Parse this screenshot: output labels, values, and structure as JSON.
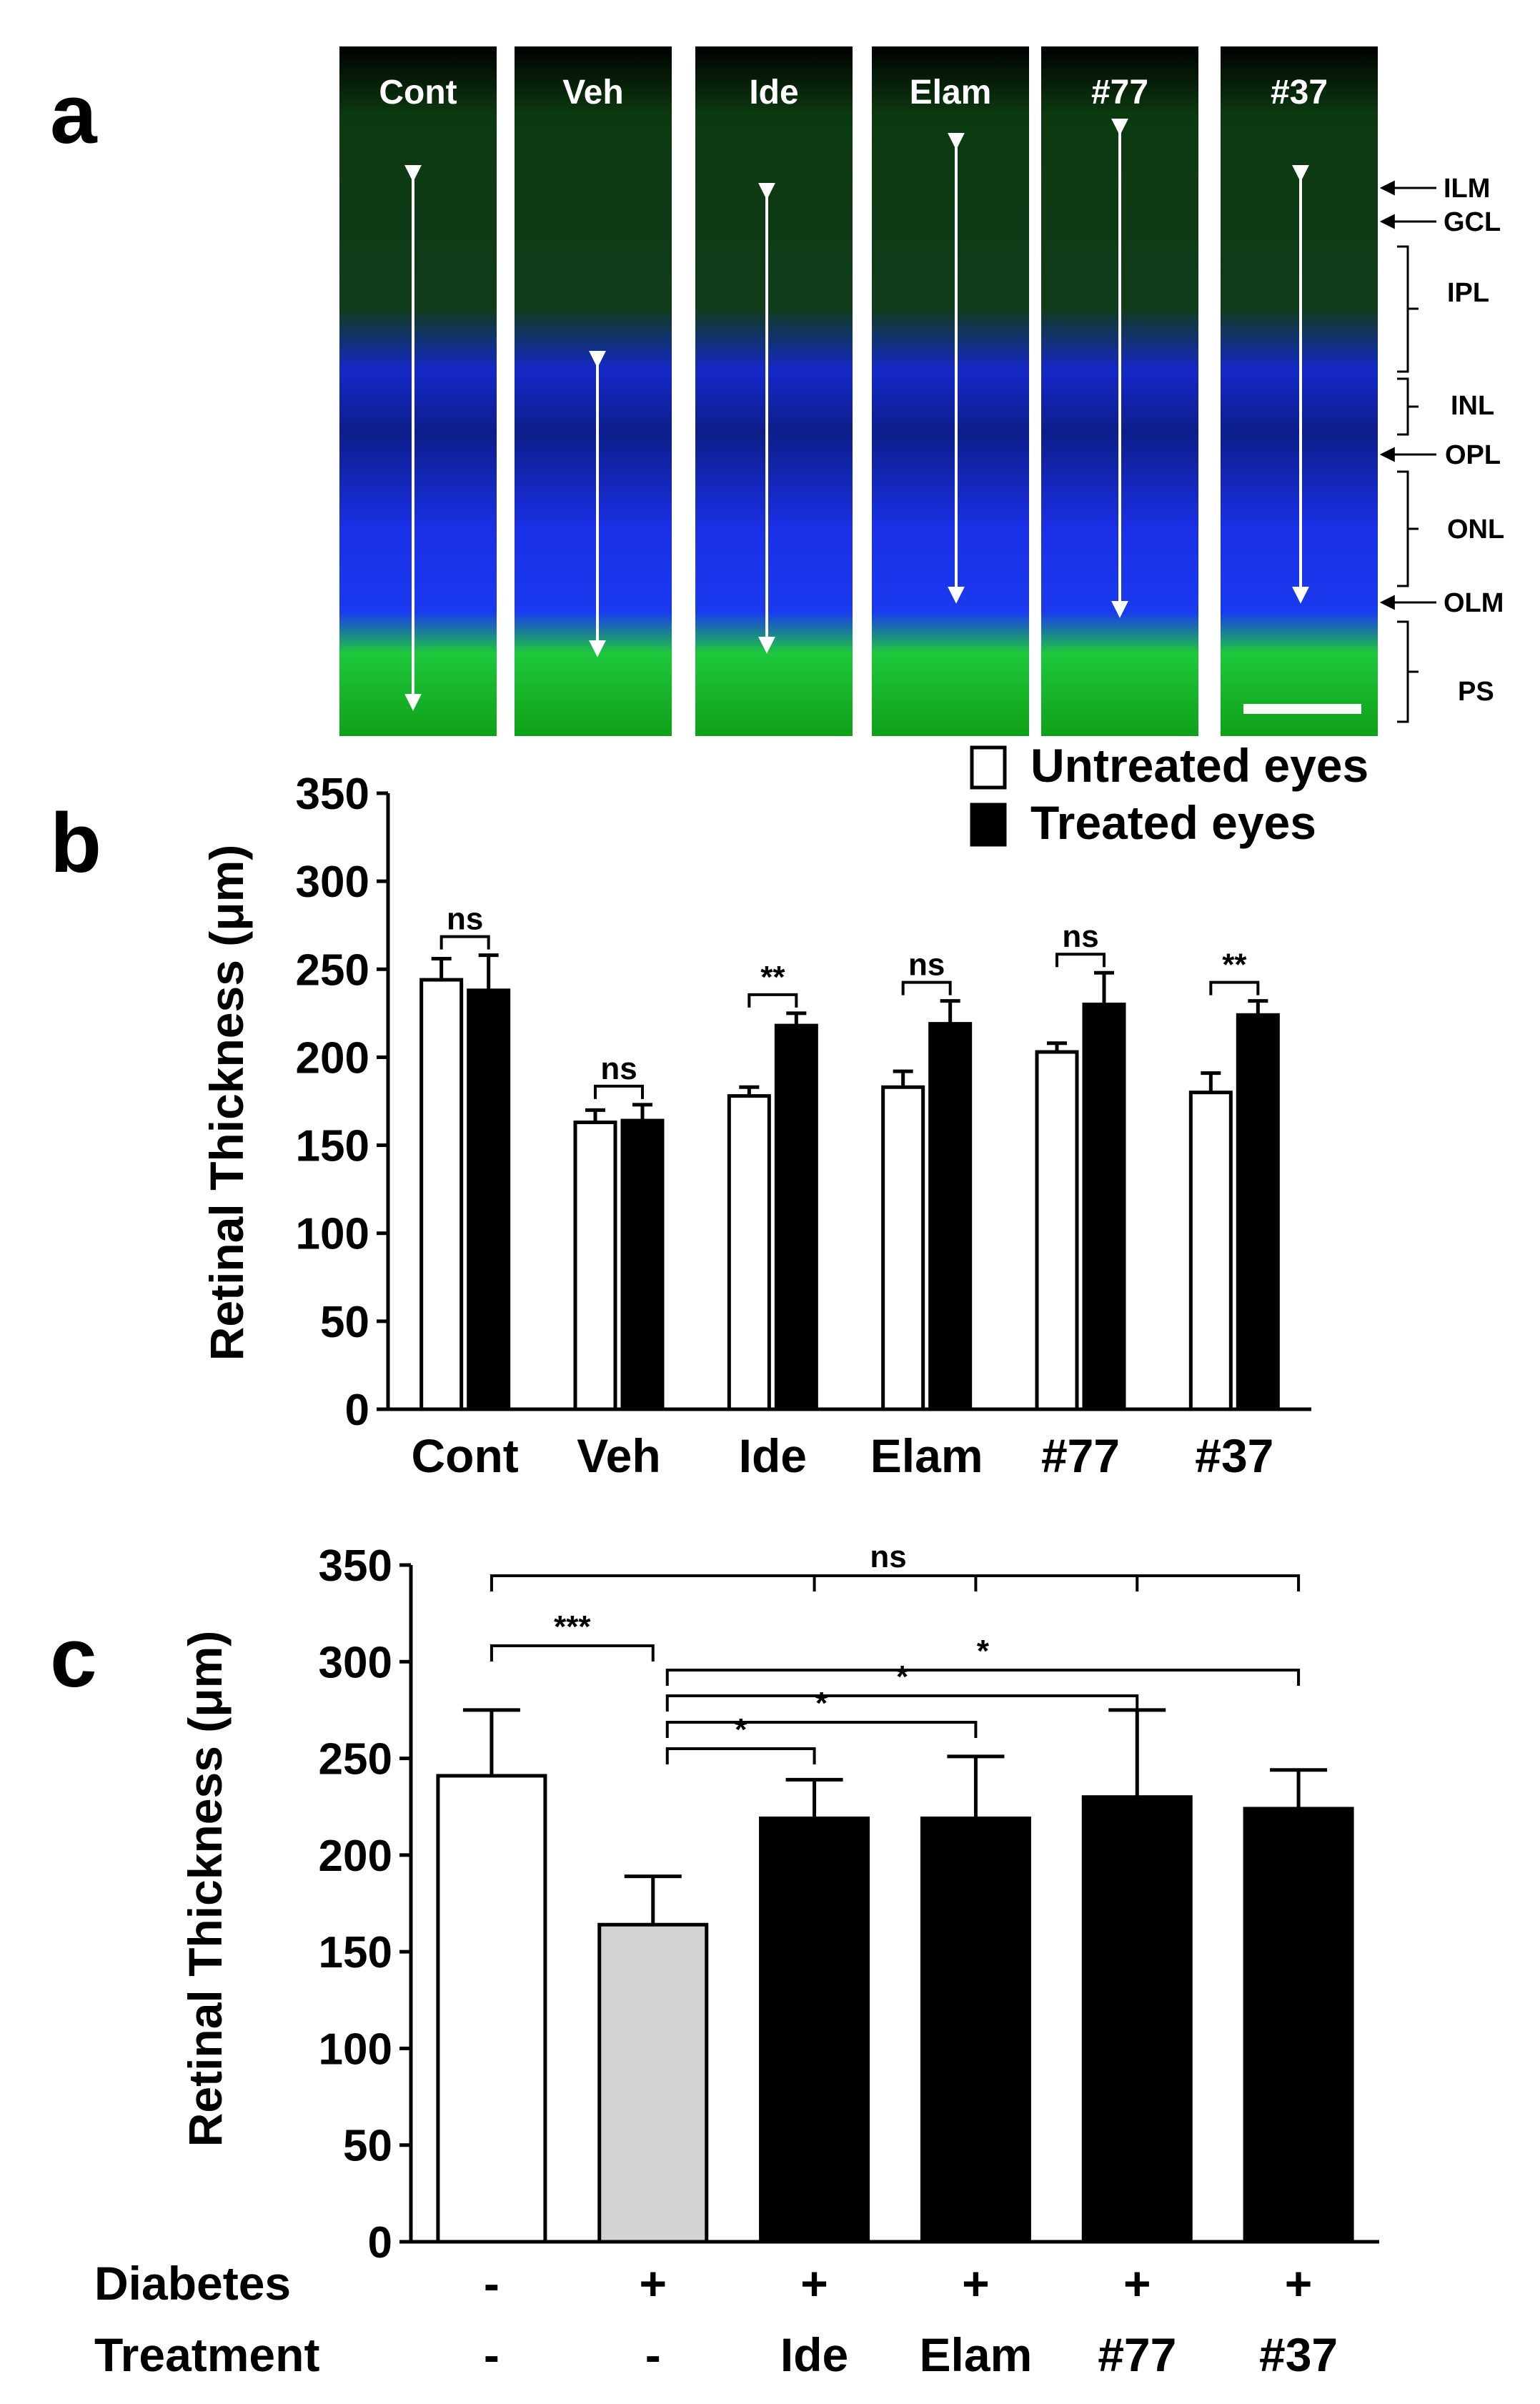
{
  "panel_a": {
    "label": "a",
    "columns": [
      "Cont",
      "Veh",
      "Ide",
      "Elam",
      "#77",
      "#37"
    ],
    "layers": [
      "ILM",
      "GCL",
      "IPL",
      "INL",
      "OPL",
      "ONL",
      "OLM",
      "PS"
    ],
    "colors": {
      "nuclei": "#1428e6",
      "stain": "#14b414",
      "background": "#000000",
      "arrow": "#ffffff"
    }
  },
  "chart_data": [
    {
      "panel": "b",
      "type": "bar",
      "title": "",
      "xlabel": "",
      "ylabel": "Retinal Thickness (μm)",
      "ylim": [
        0,
        350
      ],
      "yticks": [
        0,
        50,
        100,
        150,
        200,
        250,
        300,
        350
      ],
      "categories": [
        "Cont",
        "Veh",
        "Ide",
        "Elam",
        "#77",
        "#37"
      ],
      "series": [
        {
          "name": "Untreated  eyes",
          "color": "#ffffff",
          "values": [
            244,
            163,
            178,
            183,
            203,
            180
          ],
          "errors": [
            12,
            7,
            5,
            9,
            5,
            11
          ]
        },
        {
          "name": "Treated eyes",
          "color": "#000000",
          "values": [
            238,
            164,
            218,
            219,
            230,
            224
          ],
          "errors": [
            20,
            9,
            7,
            13,
            18,
            8
          ]
        }
      ],
      "significance": [
        "ns",
        "ns",
        "**",
        "ns",
        "ns",
        "**"
      ],
      "legend_position": "top-right"
    },
    {
      "panel": "c",
      "type": "bar",
      "title": "",
      "xlabel": "",
      "ylabel": "Retinal Thickness (μm)",
      "ylim": [
        0,
        350
      ],
      "yticks": [
        0,
        50,
        100,
        150,
        200,
        250,
        300,
        350
      ],
      "categories": [
        "Cont",
        "Veh",
        "Ide",
        "Elam",
        "#77",
        "#37"
      ],
      "values": [
        241,
        164,
        219,
        219,
        230,
        224
      ],
      "errors": [
        34,
        25,
        20,
        32,
        45,
        20
      ],
      "bar_colors": [
        "#ffffff",
        "#d3d3d3",
        "#000000",
        "#000000",
        "#000000",
        "#000000"
      ],
      "row_labels": [
        "Diabetes",
        "Treatment"
      ],
      "diabetes": [
        "-",
        "+",
        "+",
        "+",
        "+",
        "+"
      ],
      "treatment": [
        "-",
        "-",
        "Ide",
        "Elam",
        "#77",
        "#37"
      ],
      "comparisons": [
        {
          "from": 0,
          "to": [
            2,
            3,
            4,
            5
          ],
          "label": "ns"
        },
        {
          "from": 0,
          "to": [
            1
          ],
          "label": "***"
        },
        {
          "from": 1,
          "to": [
            5
          ],
          "label": "*"
        },
        {
          "from": 1,
          "to": [
            4
          ],
          "label": "*"
        },
        {
          "from": 1,
          "to": [
            3
          ],
          "label": "*"
        },
        {
          "from": 1,
          "to": [
            2
          ],
          "label": "*"
        }
      ]
    }
  ]
}
